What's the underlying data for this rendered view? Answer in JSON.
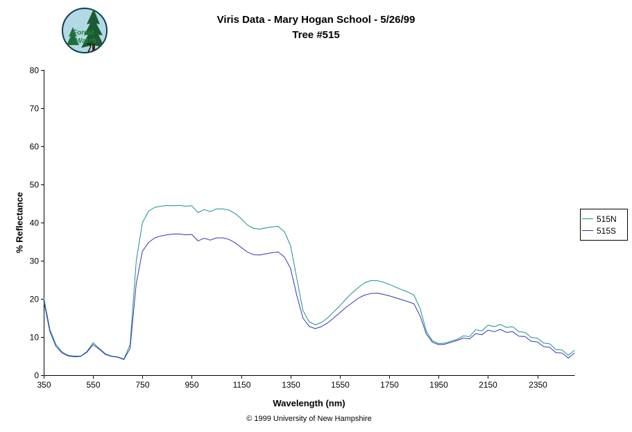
{
  "header": {
    "title_line1": "Viris Data - Mary Hogan School - 5/26/99",
    "title_line2": "Tree #515"
  },
  "logo": {
    "line1": "Forest",
    "line2": "Watch"
  },
  "footer": {
    "copyright": "© 1999 University of New Hampshire"
  },
  "chart_data": {
    "type": "line",
    "title": "Viris Data - Mary Hogan School - 5/26/99 Tree #515",
    "xlabel": "Wavelength (nm)",
    "ylabel": "% Reflectance",
    "xlim": [
      350,
      2500
    ],
    "ylim": [
      0,
      80
    ],
    "xticks": [
      350,
      550,
      750,
      950,
      1150,
      1350,
      1550,
      1750,
      1950,
      2150,
      2350
    ],
    "yticks": [
      0,
      10,
      20,
      30,
      40,
      50,
      60,
      70,
      80
    ],
    "grid": false,
    "legend_position": "right",
    "x": [
      350,
      375,
      400,
      425,
      450,
      475,
      500,
      525,
      550,
      575,
      600,
      625,
      650,
      675,
      700,
      725,
      750,
      775,
      800,
      825,
      850,
      875,
      900,
      925,
      950,
      975,
      1000,
      1025,
      1050,
      1075,
      1100,
      1125,
      1150,
      1175,
      1200,
      1225,
      1250,
      1275,
      1300,
      1325,
      1350,
      1375,
      1400,
      1425,
      1450,
      1475,
      1500,
      1525,
      1550,
      1575,
      1600,
      1625,
      1650,
      1675,
      1700,
      1725,
      1750,
      1775,
      1800,
      1825,
      1850,
      1875,
      1900,
      1925,
      1950,
      1975,
      2000,
      2025,
      2050,
      2075,
      2100,
      2125,
      2150,
      2175,
      2200,
      2225,
      2250,
      2275,
      2300,
      2325,
      2350,
      2375,
      2400,
      2425,
      2450,
      2475,
      2500
    ],
    "series": [
      {
        "name": "515N",
        "color": "#168f8f",
        "values": [
          20.5,
          12.0,
          8.0,
          6.0,
          5.2,
          5.0,
          5.0,
          6.2,
          8.5,
          7.0,
          5.6,
          5.0,
          4.8,
          4.2,
          8.0,
          30.0,
          40.0,
          43.0,
          44.0,
          44.3,
          44.5,
          44.4,
          44.5,
          44.3,
          44.4,
          42.6,
          43.4,
          42.9,
          43.6,
          43.6,
          43.3,
          42.4,
          41.0,
          39.4,
          38.5,
          38.3,
          38.6,
          38.9,
          39.0,
          37.6,
          34.0,
          25.5,
          17.0,
          14.0,
          13.2,
          13.8,
          15.0,
          16.6,
          18.2,
          20.0,
          21.6,
          23.0,
          24.2,
          24.8,
          24.8,
          24.4,
          23.8,
          23.1,
          22.4,
          21.8,
          21.0,
          17.5,
          11.5,
          9.0,
          8.3,
          8.4,
          8.9,
          9.4,
          10.3,
          10.1,
          11.9,
          11.6,
          13.1,
          12.7,
          13.3,
          12.5,
          12.7,
          11.4,
          11.2,
          9.9,
          9.7,
          8.4,
          8.2,
          6.7,
          6.6,
          5.2,
          6.5
        ]
      },
      {
        "name": "515S",
        "color": "#3434b4",
        "values": [
          19.5,
          11.4,
          7.5,
          5.8,
          5.0,
          4.8,
          4.9,
          6.0,
          8.0,
          6.8,
          5.4,
          4.9,
          4.7,
          4.1,
          7.0,
          24.0,
          32.5,
          34.8,
          36.0,
          36.5,
          36.8,
          37.0,
          37.0,
          36.8,
          36.9,
          35.2,
          35.9,
          35.4,
          36.0,
          36.0,
          35.6,
          34.7,
          33.5,
          32.3,
          31.6,
          31.5,
          31.8,
          32.1,
          32.3,
          31.0,
          28.0,
          21.0,
          15.0,
          12.8,
          12.2,
          12.7,
          13.7,
          15.0,
          16.4,
          17.8,
          19.0,
          20.2,
          21.0,
          21.4,
          21.5,
          21.2,
          20.8,
          20.3,
          19.8,
          19.3,
          18.7,
          15.5,
          10.8,
          8.6,
          8.0,
          8.1,
          8.6,
          9.1,
          9.7,
          9.5,
          10.9,
          10.6,
          11.8,
          11.4,
          12.0,
          11.2,
          11.4,
          10.2,
          10.1,
          8.9,
          8.7,
          7.5,
          7.3,
          5.9,
          5.8,
          4.5,
          5.8
        ]
      }
    ]
  }
}
